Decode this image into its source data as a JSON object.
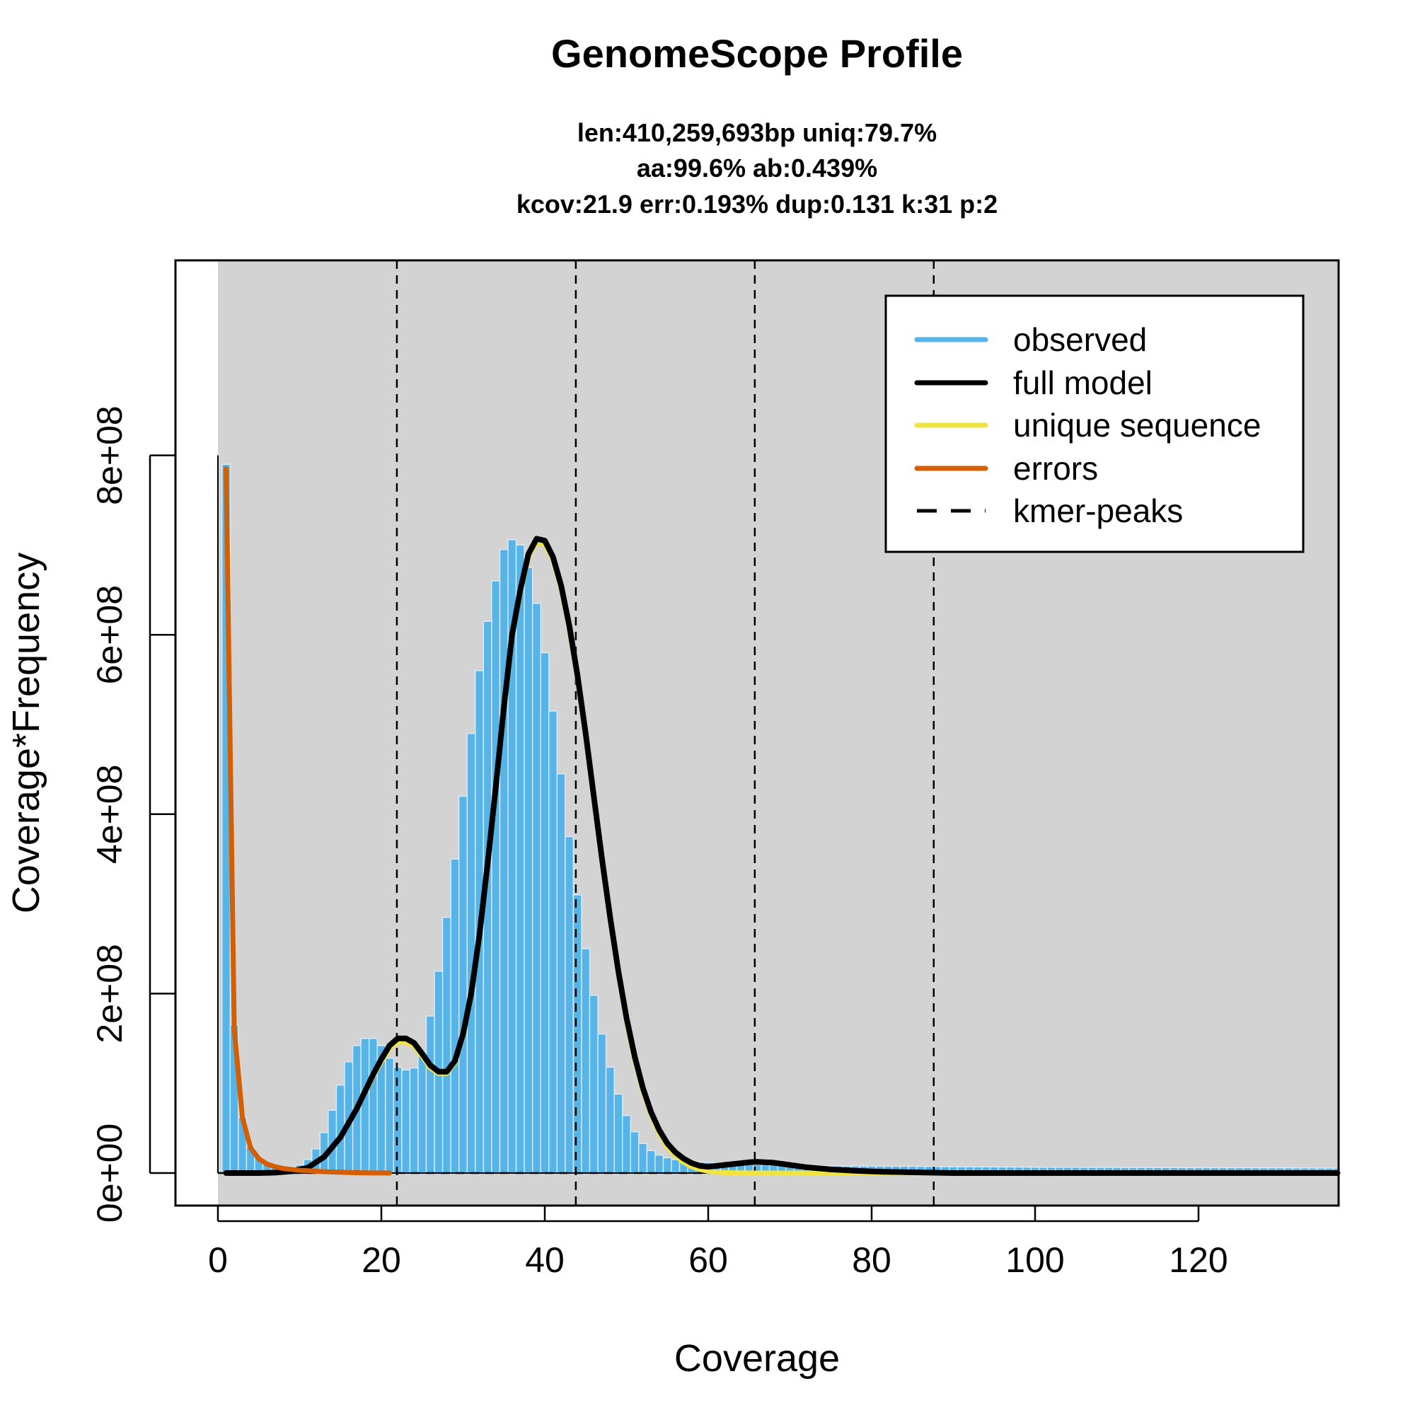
{
  "chart_data": {
    "type": "area",
    "title": "GenomeScope Profile",
    "subtitle_lines": [
      "len:410,259,693bp uniq:79.7%",
      "aa:99.6% ab:0.439%",
      "kcov:21.9 err:0.193%  dup:0.131  k:31 p:2"
    ],
    "xlabel": "Coverage",
    "ylabel": "Coverage*Frequency",
    "xlim": [
      0,
      137
    ],
    "ylim": [
      0,
      800000000
    ],
    "xticks": [
      0,
      20,
      40,
      60,
      80,
      100,
      120
    ],
    "xtick_labels": [
      "0",
      "20",
      "40",
      "60",
      "80",
      "100",
      "120"
    ],
    "yticks": [
      0,
      200000000,
      400000000,
      600000000,
      800000000
    ],
    "ytick_labels": [
      "0e+00",
      "2e+08",
      "4e+08",
      "6e+08",
      "8e+08"
    ],
    "grid": false,
    "legend_position": "top-right",
    "kmer_peaks": [
      21.9,
      43.8,
      65.7,
      87.6
    ],
    "series": [
      {
        "name": "observed",
        "color": "#56b4e9",
        "style": "bars",
        "x": [
          1,
          2,
          3,
          4,
          5,
          6,
          7,
          8,
          9,
          10,
          11,
          12,
          13,
          14,
          15,
          16,
          17,
          18,
          19,
          20,
          21,
          22,
          23,
          24,
          25,
          26,
          27,
          28,
          29,
          30,
          31,
          32,
          33,
          34,
          35,
          36,
          37,
          38,
          39,
          40,
          41,
          42,
          43,
          44,
          45,
          46,
          47,
          48,
          49,
          50,
          51,
          52,
          53,
          54,
          55,
          56,
          57,
          58,
          59,
          60,
          61,
          62,
          63,
          64,
          65,
          66,
          67,
          68,
          69,
          70,
          75,
          80,
          85,
          90,
          95,
          100,
          110,
          120,
          130,
          137
        ],
        "y": [
          790000000,
          165000000,
          62000000,
          30000000,
          17000000,
          10000000,
          7000000,
          6000000,
          7000000,
          9000000,
          15000000,
          27000000,
          45000000,
          70000000,
          98000000,
          124000000,
          142000000,
          150000000,
          150000000,
          142000000,
          128000000,
          118000000,
          115000000,
          117000000,
          135000000,
          175000000,
          225000000,
          285000000,
          350000000,
          420000000,
          490000000,
          560000000,
          615000000,
          660000000,
          695000000,
          706000000,
          700000000,
          675000000,
          635000000,
          580000000,
          515000000,
          445000000,
          375000000,
          310000000,
          250000000,
          198000000,
          155000000,
          118000000,
          88000000,
          64000000,
          46000000,
          33000000,
          25000000,
          20000000,
          17000000,
          15000000,
          14000000,
          13000000,
          12500000,
          12000000,
          11000000,
          10500000,
          10000000,
          9700000,
          9500000,
          9200000,
          9000000,
          8800000,
          8600000,
          8500000,
          8000000,
          7800000,
          7500000,
          7000000,
          6800000,
          6500000,
          6200000,
          6000000,
          5800000,
          5500000
        ]
      },
      {
        "name": "full model",
        "color": "#000000",
        "style": "line",
        "x": [
          1,
          3,
          5,
          7,
          9,
          11,
          13,
          15,
          17,
          19,
          20,
          21,
          22,
          23,
          24,
          25,
          26,
          27,
          28,
          29,
          30,
          31,
          32,
          33,
          34,
          35,
          36,
          37,
          38,
          39,
          40,
          41,
          42,
          43,
          44,
          45,
          46,
          47,
          48,
          49,
          50,
          51,
          52,
          53,
          54,
          55,
          56,
          57,
          58,
          59,
          60,
          61,
          62,
          63,
          64,
          65,
          66,
          68,
          70,
          72,
          75,
          78,
          81,
          84,
          87,
          90,
          93,
          96,
          100,
          105,
          110,
          115,
          120,
          125,
          130,
          137
        ],
        "y": [
          0,
          0,
          0,
          500000,
          2000000,
          6000000,
          18000000,
          40000000,
          72000000,
          110000000,
          127000000,
          142000000,
          150000000,
          150000000,
          145000000,
          133000000,
          120000000,
          113000000,
          113000000,
          125000000,
          155000000,
          200000000,
          265000000,
          345000000,
          430000000,
          520000000,
          600000000,
          650000000,
          690000000,
          707000000,
          705000000,
          687000000,
          655000000,
          610000000,
          555000000,
          490000000,
          420000000,
          350000000,
          285000000,
          225000000,
          173000000,
          130000000,
          95000000,
          68000000,
          48000000,
          33000000,
          23000000,
          16000000,
          11000000,
          8000000,
          7000000,
          8000000,
          9000000,
          10000000,
          11000000,
          12000000,
          12500000,
          11500000,
          9000000,
          6500000,
          4000000,
          2500000,
          1500000,
          1000000,
          500000,
          0,
          0,
          0,
          0,
          0,
          0,
          0,
          0,
          0,
          0,
          0
        ]
      },
      {
        "name": "unique sequence",
        "color": "#f0e442",
        "style": "line",
        "x": [
          1,
          5,
          9,
          11,
          13,
          15,
          17,
          19,
          20,
          21,
          22,
          23,
          24,
          25,
          26,
          27,
          28,
          29,
          30,
          31,
          32,
          33,
          34,
          35,
          36,
          37,
          38,
          39,
          40,
          41,
          42,
          43,
          44,
          45,
          46,
          47,
          48,
          49,
          50,
          51,
          52,
          53,
          54,
          55,
          56,
          57,
          58,
          59,
          60,
          61,
          62,
          63,
          64,
          65,
          66,
          68,
          70,
          72,
          75,
          78,
          81,
          84,
          87,
          90,
          93,
          96,
          100,
          105,
          110,
          115,
          120,
          125,
          130,
          137
        ],
        "y": [
          0,
          0,
          2000000,
          6000000,
          18000000,
          40000000,
          72000000,
          108000000,
          124000000,
          139000000,
          146000000,
          146000000,
          141000000,
          130000000,
          117000000,
          111000000,
          111000000,
          123000000,
          153000000,
          198000000,
          262000000,
          342000000,
          427000000,
          517000000,
          597000000,
          647000000,
          687000000,
          703000000,
          701000000,
          683000000,
          651000000,
          606000000,
          551000000,
          486000000,
          416000000,
          346000000,
          281000000,
          221000000,
          169000000,
          126000000,
          91000000,
          64000000,
          44000000,
          29000000,
          19000000,
          12000000,
          7000000,
          4000000,
          2000000,
          1000000,
          500000,
          300000,
          200000,
          100000,
          0,
          0,
          0,
          0,
          0,
          0,
          0,
          0,
          0,
          0,
          0,
          0,
          0,
          0,
          0,
          0,
          0,
          0,
          0,
          0
        ]
      },
      {
        "name": "errors",
        "color": "#d55e00",
        "style": "line",
        "x": [
          1,
          2,
          3,
          4,
          5,
          6,
          7,
          8,
          9,
          10,
          11,
          12,
          13,
          14,
          15,
          16,
          17,
          18,
          19,
          20,
          21
        ],
        "y": [
          785000000,
          160000000,
          62000000,
          28000000,
          16000000,
          10000000,
          7000000,
          5000000,
          4000000,
          3000000,
          2500000,
          2000000,
          1500000,
          1200000,
          900000,
          600000,
          400000,
          200000,
          100000,
          50000,
          0
        ]
      },
      {
        "name": "kmer-peaks",
        "color": "#000000",
        "style": "dashed"
      }
    ]
  }
}
